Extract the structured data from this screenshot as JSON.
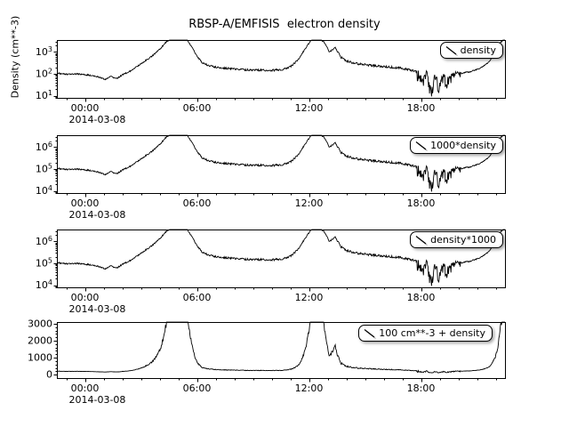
{
  "chart_data": {
    "type": "line",
    "title": "RBSP-A/EMFISIS  electron density",
    "y_axis_label": "Density (cm**-3)",
    "line_color": "#000000",
    "background_color": "#ffffff",
    "x_axis": {
      "range_hours": [
        -1.5,
        22.5
      ],
      "major_tick_hours": [
        0,
        6,
        12,
        18
      ],
      "major_tick_labels": [
        "00:00",
        "06:00",
        "12:00",
        "18:00"
      ],
      "minor_tick_step_hours": 1,
      "date_label": "2014-03-08"
    },
    "series_base": {
      "name": "density",
      "units": "cm**-3",
      "points_hour_value": [
        [
          -1.5,
          110
        ],
        [
          -1.2,
          100
        ],
        [
          -0.8,
          95
        ],
        [
          -0.4,
          100
        ],
        [
          0,
          90
        ],
        [
          0.4,
          85
        ],
        [
          0.8,
          70
        ],
        [
          1.1,
          55
        ],
        [
          1.4,
          75
        ],
        [
          1.7,
          60
        ],
        [
          2,
          90
        ],
        [
          2.4,
          130
        ],
        [
          2.8,
          220
        ],
        [
          3.2,
          380
        ],
        [
          3.6,
          650
        ],
        [
          4,
          1300
        ],
        [
          4.3,
          2600
        ],
        [
          4.6,
          4200
        ],
        [
          5,
          4800
        ],
        [
          5.4,
          4200
        ],
        [
          5.7,
          1900
        ],
        [
          6,
          650
        ],
        [
          6.3,
          320
        ],
        [
          6.7,
          230
        ],
        [
          7.2,
          195
        ],
        [
          8,
          165
        ],
        [
          9,
          150
        ],
        [
          10,
          145
        ],
        [
          10.6,
          160
        ],
        [
          11,
          210
        ],
        [
          11.4,
          420
        ],
        [
          11.8,
          1400
        ],
        [
          12.1,
          3400
        ],
        [
          12.4,
          4800
        ],
        [
          12.8,
          3000
        ],
        [
          13.1,
          1000
        ],
        [
          13.4,
          1600
        ],
        [
          13.7,
          600
        ],
        [
          14,
          380
        ],
        [
          14.5,
          300
        ],
        [
          15.2,
          250
        ],
        [
          16,
          215
        ],
        [
          17,
          180
        ],
        [
          17.6,
          140
        ],
        [
          17.9,
          105
        ],
        [
          18.1,
          45
        ],
        [
          18.3,
          115
        ],
        [
          18.55,
          14
        ],
        [
          18.75,
          95
        ],
        [
          18.95,
          28
        ],
        [
          19.15,
          85
        ],
        [
          19.4,
          55
        ],
        [
          19.7,
          90
        ],
        [
          20.1,
          105
        ],
        [
          20.6,
          125
        ],
        [
          21.1,
          170
        ],
        [
          21.6,
          320
        ],
        [
          22,
          1000
        ],
        [
          22.25,
          2600
        ],
        [
          22.5,
          4800
        ]
      ]
    },
    "panels": [
      {
        "name": "panel-1",
        "legend": "density",
        "scale": "log",
        "multiply": 1,
        "offset": 0,
        "y_tick_labels": [
          "10^1",
          "10^2",
          "10^3"
        ],
        "y_log_range": [
          0.9,
          3.55
        ]
      },
      {
        "name": "panel-2",
        "legend": "1000*density",
        "scale": "log",
        "multiply": 1000,
        "offset": 0,
        "y_tick_labels": [
          "10^4",
          "10^5",
          "10^6"
        ],
        "y_log_range": [
          3.9,
          6.55
        ]
      },
      {
        "name": "panel-3",
        "legend": "density*1000",
        "scale": "log",
        "multiply": 1000,
        "offset": 0,
        "y_tick_labels": [
          "10^4",
          "10^5",
          "10^6"
        ],
        "y_log_range": [
          3.9,
          6.55
        ]
      },
      {
        "name": "panel-4",
        "legend": "100 cm**-3 + density",
        "scale": "linear",
        "multiply": 1,
        "offset": 100,
        "y_tick_labels": [
          "0",
          "1000",
          "2000",
          "3000"
        ],
        "y_linear_range": [
          -200,
          3100
        ],
        "y_minor_step": 200
      }
    ]
  }
}
